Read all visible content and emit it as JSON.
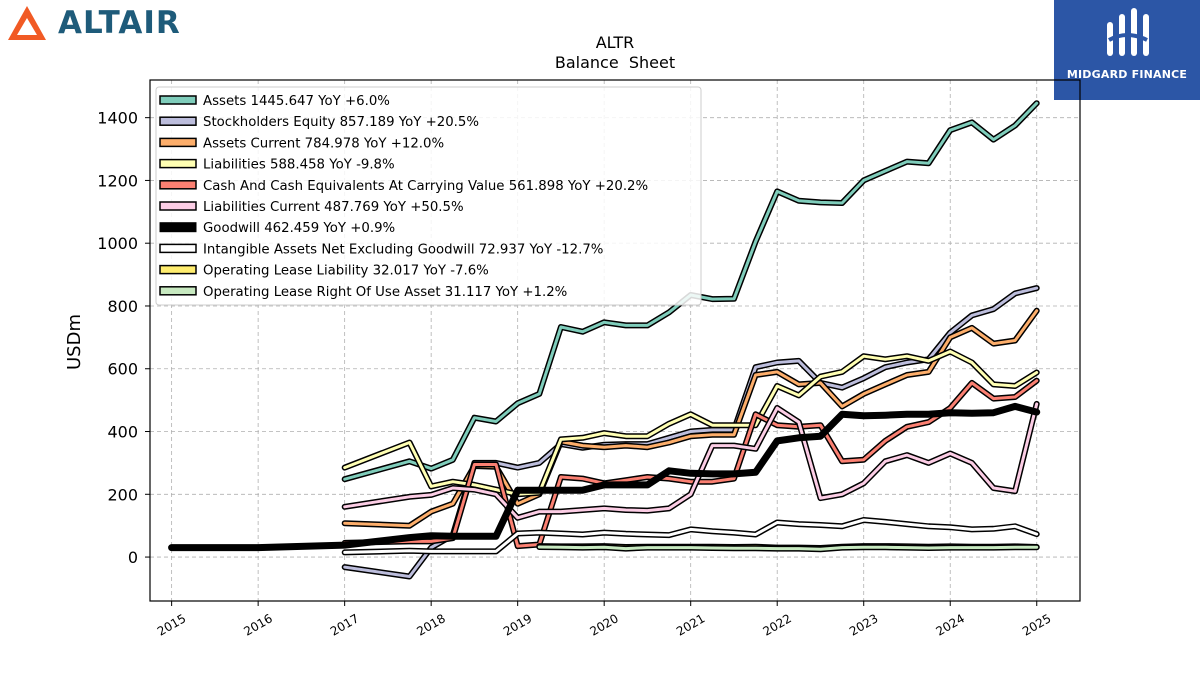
{
  "brand": {
    "left_logo_text": "ALTAIR",
    "right_logo_text": "MIDGARD FINANCE"
  },
  "chart_data": {
    "type": "line",
    "title": "ALTR",
    "subtitle": "Balance  Sheet",
    "xlabel": "",
    "ylabel": "USDm",
    "xlim": [
      2014.75,
      2025.5
    ],
    "ylim": [
      -140,
      1520
    ],
    "x_ticks": [
      2015,
      2016,
      2017,
      2018,
      2019,
      2020,
      2021,
      2022,
      2023,
      2024,
      2025
    ],
    "y_ticks": [
      0,
      200,
      400,
      600,
      800,
      1000,
      1200,
      1400
    ],
    "grid": true,
    "legend_position": "top-left",
    "series": [
      {
        "name": "Assets",
        "legend_label": "Assets  1445.647 YoY +6.0%",
        "color": "#7fcdbb",
        "width": 3,
        "x": [
          2017.0,
          2017.75,
          2018.0,
          2018.25,
          2018.5,
          2018.75,
          2019.0,
          2019.25,
          2019.5,
          2019.75,
          2020.0,
          2020.25,
          2020.5,
          2020.75,
          2021.0,
          2021.25,
          2021.5,
          2021.75,
          2022.0,
          2022.25,
          2022.5,
          2022.75,
          2023.0,
          2023.25,
          2023.5,
          2023.75,
          2024.0,
          2024.25,
          2024.5,
          2024.75,
          2025.0
        ],
        "y": [
          248,
          305,
          282,
          310,
          444,
          432,
          490,
          520,
          733,
          718,
          748,
          738,
          738,
          780,
          835,
          822,
          823,
          1005,
          1165,
          1135,
          1130,
          1128,
          1200,
          1230,
          1260,
          1255,
          1360,
          1385,
          1330,
          1375,
          1446
        ]
      },
      {
        "name": "Stockholders Equity",
        "legend_label": "Stockholders Equity  857.189 YoY +20.5%",
        "color": "#bcbddc",
        "width": 3,
        "x": [
          2017.0,
          2017.75,
          2018.0,
          2018.25,
          2018.5,
          2018.75,
          2019.0,
          2019.25,
          2019.5,
          2019.75,
          2020.0,
          2020.25,
          2020.5,
          2020.75,
          2021.0,
          2021.25,
          2021.5,
          2021.75,
          2022.0,
          2022.25,
          2022.5,
          2022.75,
          2023.0,
          2023.25,
          2023.5,
          2023.75,
          2024.0,
          2024.25,
          2024.5,
          2024.75,
          2025.0
        ],
        "y": [
          -32,
          -62,
          30,
          70,
          300,
          300,
          285,
          300,
          360,
          348,
          358,
          360,
          360,
          380,
          400,
          405,
          405,
          605,
          620,
          625,
          555,
          540,
          570,
          605,
          620,
          630,
          715,
          770,
          790,
          840,
          857
        ]
      },
      {
        "name": "Assets Current",
        "legend_label": "Assets Current  784.978 YoY +12.0%",
        "color": "#fdae6b",
        "width": 3,
        "x": [
          2017.0,
          2017.75,
          2018.0,
          2018.25,
          2018.5,
          2018.75,
          2019.0,
          2019.25,
          2019.5,
          2019.75,
          2020.0,
          2020.25,
          2020.5,
          2020.75,
          2021.0,
          2021.25,
          2021.5,
          2021.75,
          2022.0,
          2022.25,
          2022.5,
          2022.75,
          2023.0,
          2023.25,
          2023.5,
          2023.75,
          2024.0,
          2024.25,
          2024.5,
          2024.75,
          2025.0
        ],
        "y": [
          108,
          100,
          145,
          170,
          290,
          288,
          170,
          200,
          368,
          355,
          350,
          355,
          350,
          365,
          385,
          390,
          390,
          580,
          590,
          550,
          555,
          480,
          520,
          550,
          580,
          590,
          700,
          730,
          680,
          690,
          785
        ]
      },
      {
        "name": "Liabilities",
        "legend_label": "Liabilities  588.458 YoY -9.8%",
        "color": "#ffffb3",
        "width": 3,
        "x": [
          2017.0,
          2017.75,
          2018.0,
          2018.25,
          2018.5,
          2018.75,
          2019.0,
          2019.25,
          2019.5,
          2019.75,
          2020.0,
          2020.25,
          2020.5,
          2020.75,
          2021.0,
          2021.25,
          2021.5,
          2021.75,
          2022.0,
          2022.25,
          2022.5,
          2022.75,
          2023.0,
          2023.25,
          2023.5,
          2023.75,
          2024.0,
          2024.25,
          2024.5,
          2024.75,
          2025.0
        ],
        "y": [
          285,
          365,
          225,
          240,
          230,
          215,
          200,
          205,
          375,
          380,
          395,
          385,
          385,
          425,
          455,
          420,
          420,
          420,
          545,
          515,
          575,
          590,
          640,
          630,
          640,
          625,
          655,
          620,
          550,
          545,
          588
        ]
      },
      {
        "name": "Cash And Cash Equivalents At Carrying Value",
        "legend_label": "Cash And Cash Equivalents At Carrying Value  561.898 YoY +20.2%",
        "color": "#fb8072",
        "width": 3,
        "x": [
          2017.0,
          2017.75,
          2018.0,
          2018.25,
          2018.5,
          2018.75,
          2019.0,
          2019.25,
          2019.5,
          2019.75,
          2020.0,
          2020.25,
          2020.5,
          2020.75,
          2021.0,
          2021.25,
          2021.5,
          2021.75,
          2022.0,
          2022.25,
          2022.5,
          2022.75,
          2023.0,
          2023.25,
          2023.5,
          2023.75,
          2024.0,
          2024.25,
          2024.5,
          2024.75,
          2025.0
        ],
        "y": [
          45,
          50,
          50,
          60,
          295,
          295,
          35,
          40,
          255,
          250,
          235,
          245,
          255,
          250,
          240,
          240,
          250,
          455,
          420,
          415,
          420,
          305,
          310,
          370,
          415,
          430,
          475,
          555,
          505,
          510,
          562
        ]
      },
      {
        "name": "Liabilities Current",
        "legend_label": "Liabilities Current  487.769 YoY +50.5%",
        "color": "#fccde5",
        "width": 3,
        "x": [
          2017.0,
          2017.75,
          2018.0,
          2018.25,
          2018.5,
          2018.75,
          2019.0,
          2019.25,
          2019.5,
          2019.75,
          2020.0,
          2020.25,
          2020.5,
          2020.75,
          2021.0,
          2021.25,
          2021.5,
          2021.75,
          2022.0,
          2022.25,
          2022.5,
          2022.75,
          2023.0,
          2023.25,
          2023.5,
          2023.75,
          2024.0,
          2024.25,
          2024.5,
          2024.75,
          2025.0
        ],
        "y": [
          160,
          192,
          198,
          220,
          215,
          200,
          125,
          145,
          145,
          150,
          155,
          150,
          148,
          155,
          200,
          355,
          355,
          345,
          475,
          430,
          188,
          200,
          235,
          305,
          325,
          300,
          330,
          300,
          220,
          210,
          488
        ]
      },
      {
        "name": "Goodwill",
        "legend_label": "Goodwill  462.459 YoY +0.9%",
        "color": "#000000",
        "width": 7,
        "x": [
          2015.0,
          2016.0,
          2017.0,
          2017.75,
          2018.0,
          2018.25,
          2018.5,
          2018.75,
          2019.0,
          2019.25,
          2019.5,
          2019.75,
          2020.0,
          2020.25,
          2020.5,
          2020.75,
          2021.0,
          2021.25,
          2021.5,
          2021.75,
          2022.0,
          2022.25,
          2022.5,
          2022.75,
          2023.0,
          2023.25,
          2023.5,
          2023.75,
          2024.0,
          2024.25,
          2024.5,
          2024.75,
          2025.0
        ],
        "y": [
          30,
          30,
          38,
          62,
          68,
          66,
          66,
          66,
          213,
          213,
          213,
          213,
          230,
          230,
          230,
          275,
          267,
          265,
          265,
          270,
          370,
          380,
          385,
          455,
          450,
          452,
          455,
          455,
          460,
          458,
          460,
          480,
          462
        ]
      },
      {
        "name": "Intangible Assets Net Excluding Goodwill",
        "legend_label": "Intangible Assets Net Excluding Goodwill  72.937 YoY -12.7%",
        "color": "#ffffff",
        "width": 3,
        "x": [
          2017.0,
          2017.75,
          2018.0,
          2018.25,
          2018.5,
          2018.75,
          2019.0,
          2019.25,
          2019.5,
          2019.75,
          2020.0,
          2020.25,
          2020.5,
          2020.75,
          2021.0,
          2021.25,
          2021.5,
          2021.75,
          2022.0,
          2022.25,
          2022.5,
          2022.75,
          2023.0,
          2023.25,
          2023.5,
          2023.75,
          2024.0,
          2024.25,
          2024.5,
          2024.75,
          2025.0
        ],
        "y": [
          15,
          20,
          18,
          18,
          18,
          18,
          75,
          78,
          75,
          72,
          78,
          74,
          72,
          70,
          88,
          82,
          78,
          72,
          110,
          105,
          102,
          98,
          118,
          112,
          105,
          98,
          95,
          88,
          90,
          98,
          73
        ]
      },
      {
        "name": "Operating Lease Liability",
        "legend_label": "Operating Lease Liability  32.017 YoY -7.6%",
        "color": "#ffed6f",
        "width": 3,
        "x": [
          2019.25,
          2019.5,
          2019.75,
          2020.0,
          2020.25,
          2020.5,
          2020.75,
          2021.0,
          2021.25,
          2021.5,
          2021.75,
          2022.0,
          2022.25,
          2022.5,
          2022.75,
          2023.0,
          2023.25,
          2023.5,
          2023.75,
          2024.0,
          2024.25,
          2024.5,
          2024.75,
          2025.0
        ],
        "y": [
          35,
          34,
          34,
          35,
          32,
          33,
          33,
          33,
          33,
          32,
          33,
          30,
          30,
          29,
          33,
          35,
          35,
          34,
          33,
          34,
          33,
          33,
          34,
          32
        ]
      },
      {
        "name": "Operating Lease Right Of Use Asset",
        "legend_label": "Operating Lease Right Of Use Asset  31.117 YoY +1.2%",
        "color": "#c7e9c0",
        "width": 3,
        "x": [
          2019.25,
          2019.5,
          2019.75,
          2020.0,
          2020.25,
          2020.5,
          2020.75,
          2021.0,
          2021.25,
          2021.5,
          2021.75,
          2022.0,
          2022.25,
          2022.5,
          2022.75,
          2023.0,
          2023.25,
          2023.5,
          2023.75,
          2024.0,
          2024.25,
          2024.5,
          2024.75,
          2025.0
        ],
        "y": [
          32,
          31,
          30,
          31,
          27,
          30,
          30,
          30,
          29,
          28,
          28,
          27,
          27,
          25,
          30,
          31,
          31,
          30,
          29,
          30,
          30,
          30,
          31,
          31
        ]
      }
    ]
  }
}
